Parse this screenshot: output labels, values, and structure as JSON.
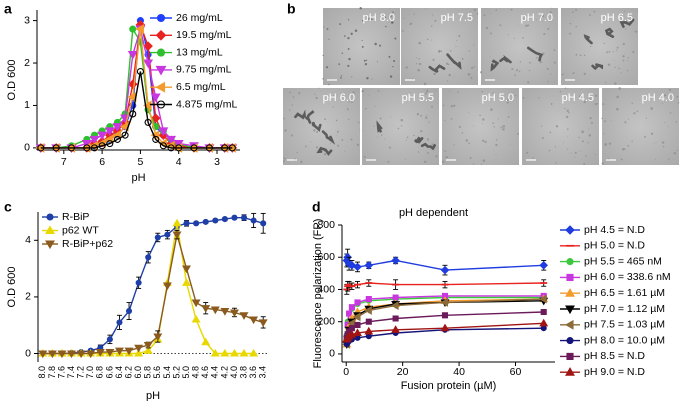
{
  "panel_labels": [
    "a",
    "b",
    "c",
    "d"
  ],
  "micrographs": {
    "labels": [
      "pH 8.0",
      "pH 7.5",
      "pH 7.0",
      "pH 6.5",
      "pH 6.0",
      "pH 5.5",
      "pH 5.0",
      "pH 4.5",
      "pH 4.0"
    ]
  },
  "chart_data": [
    {
      "type": "line",
      "xlabel": "pH",
      "ylabel": "O.D 600",
      "x": [
        7.6,
        7.2,
        6.8,
        6.4,
        6.2,
        6.0,
        5.8,
        5.6,
        5.4,
        5.2,
        5.0,
        4.8,
        4.6,
        4.4,
        4.2,
        4.0,
        3.6,
        3.2,
        2.8,
        2.6
      ],
      "xlim": [
        7.7,
        2.4
      ],
      "xticks": [
        7,
        6,
        5,
        4,
        3
      ],
      "ylim": [
        -0.05,
        3.25
      ],
      "yticks": [
        0,
        1,
        2,
        3
      ],
      "series": [
        {
          "name": "26 mg/mL",
          "color": "#1f3fff",
          "marker": "circle",
          "values": [
            0,
            0,
            0,
            0,
            0.05,
            0.1,
            0.2,
            0.3,
            0.5,
            1.0,
            3.0,
            2.2,
            0.5,
            0.3,
            0.1,
            0.05,
            0,
            0,
            0,
            0
          ]
        },
        {
          "name": "19.5 mg/mL",
          "color": "#e8231f",
          "marker": "diamond",
          "values": [
            0,
            0,
            0,
            0,
            0.1,
            0.15,
            0.3,
            0.4,
            0.6,
            1.5,
            2.9,
            2.4,
            0.7,
            0.3,
            0.1,
            0.05,
            0,
            0,
            0,
            0
          ]
        },
        {
          "name": "13 mg/mL",
          "color": "#2fc02f",
          "marker": "circle",
          "values": [
            0,
            0,
            0.05,
            0.2,
            0.3,
            0.4,
            0.5,
            0.6,
            0.8,
            2.8,
            2.5,
            0.9,
            0.5,
            0.4,
            0.2,
            0.1,
            0,
            0,
            0,
            0
          ]
        },
        {
          "name": "9.75 mg/mL",
          "color": "#c837e0",
          "marker": "tri-down",
          "values": [
            0,
            0,
            0,
            0.1,
            0.2,
            0.3,
            0.4,
            0.5,
            0.7,
            2.2,
            2.8,
            2.0,
            1.2,
            0.4,
            0.2,
            0.1,
            0.05,
            0,
            0,
            0
          ]
        },
        {
          "name": "6.5 mg/mL",
          "color": "#f39c2d",
          "marker": "tri-left",
          "values": [
            0,
            0,
            0,
            0,
            0.05,
            0.1,
            0.2,
            0.3,
            0.5,
            1.2,
            2.8,
            1.0,
            0.3,
            0.1,
            0.05,
            0,
            0,
            0,
            0,
            0
          ]
        },
        {
          "name": "4.875 mg/mL",
          "color": "#000000",
          "marker": "circle-open",
          "values": [
            0,
            0,
            0,
            0,
            0,
            0.05,
            0.1,
            0.2,
            0.3,
            0.8,
            1.8,
            0.6,
            0.2,
            0.05,
            0,
            0,
            0,
            0,
            0,
            0
          ]
        }
      ]
    },
    {
      "type": "line",
      "xlabel": "pH",
      "ylabel": "O.D 600",
      "categories": [
        "8.0",
        "7.8",
        "7.6",
        "7.4",
        "7.2",
        "7.0",
        "6.8",
        "6.6",
        "6.4",
        "6.2",
        "6.0",
        "5.8",
        "5.6",
        "5.4",
        "5.2",
        "5.0",
        "4.8",
        "4.6",
        "4.4",
        "4.2",
        "4.0",
        "3.8",
        "3.6",
        "3.4"
      ],
      "ylim": [
        -0.3,
        5.0
      ],
      "yticks": [
        0,
        2,
        4
      ],
      "series": [
        {
          "name": "R-BiP",
          "color": "#1f3fa8",
          "marker": "circle",
          "values": [
            0,
            0,
            0,
            0.02,
            0.05,
            0.1,
            0.2,
            0.5,
            1.1,
            1.5,
            2.5,
            3.4,
            4.1,
            4.2,
            4.5,
            4.6,
            4.6,
            4.65,
            4.7,
            4.75,
            4.8,
            4.8,
            4.7,
            4.6
          ],
          "errors": [
            null,
            null,
            null,
            null,
            null,
            0.05,
            0.1,
            0.15,
            0.25,
            0.3,
            0.2,
            0.2,
            0.15,
            0.15,
            0.1,
            0.1,
            0.05,
            0.05,
            0.05,
            0.05,
            0.05,
            0.1,
            0.25,
            0.35
          ]
        },
        {
          "name": "p62 WT",
          "color": "#e8d800",
          "marker": "tri-up",
          "values": [
            0,
            0,
            0,
            0,
            0,
            0,
            0,
            0,
            0,
            0,
            0,
            0.1,
            0.5,
            2.5,
            4.6,
            2.5,
            1.2,
            0.4,
            0,
            0,
            0,
            0,
            0,
            null
          ]
        },
        {
          "name": "R-BiP+p62",
          "color": "#8b5a1e",
          "marker": "tri-down",
          "values": [
            0,
            0,
            0,
            0,
            0,
            0,
            0.05,
            0.05,
            0.1,
            0.1,
            0.2,
            0.3,
            0.6,
            2.4,
            4.2,
            3.0,
            1.8,
            1.6,
            1.55,
            1.5,
            1.45,
            1.35,
            1.2,
            1.1
          ],
          "errors": [
            null,
            null,
            null,
            null,
            null,
            null,
            null,
            null,
            null,
            null,
            null,
            0.1,
            0.2,
            null,
            0.15,
            null,
            null,
            0.2,
            null,
            null,
            0.15,
            null,
            null,
            0.2
          ]
        }
      ]
    },
    {
      "type": "scatter",
      "title": "pH dependent",
      "xlabel": "Fusion protein (µM)",
      "ylabel": "Fluorescence polarization (FP)",
      "x": [
        0.2,
        0.5,
        1,
        2,
        4,
        8,
        17.5,
        35,
        70
      ],
      "xlim": [
        -1.5,
        74
      ],
      "xticks": [
        0,
        20,
        40,
        60
      ],
      "ylim": [
        -50,
        800
      ],
      "yticks": [
        0,
        200,
        400,
        600,
        800
      ],
      "series": [
        {
          "name": "pH 4.5 = N.D",
          "color": "#1f3de0",
          "marker": "diamond",
          "values": [
            580,
            600,
            560,
            550,
            540,
            550,
            580,
            520,
            550
          ],
          "errors": [
            40,
            50,
            40,
            30,
            30,
            20,
            20,
            30,
            30
          ]
        },
        {
          "name": "pH 5.0 = N.D",
          "color": "#e8231f",
          "marker": "dash",
          "values": [
            400,
            420,
            430,
            420,
            430,
            440,
            430,
            430,
            440
          ],
          "errors": [
            30,
            30,
            20,
            20,
            20,
            20,
            30,
            20,
            20
          ]
        },
        {
          "name": "pH 5.5 = 465 nM",
          "color": "#3cc83c",
          "marker": "circle",
          "values": [
            120,
            200,
            250,
            280,
            310,
            330,
            340,
            350,
            350
          ]
        },
        {
          "name": "pH 6.0 = 338.6 nM",
          "color": "#c837e0",
          "marker": "square",
          "values": [
            100,
            180,
            250,
            290,
            320,
            340,
            350,
            360,
            360
          ]
        },
        {
          "name": "pH 6.5 = 1.61 µM",
          "color": "#f39c2d",
          "marker": "tri-up",
          "values": [
            60,
            100,
            170,
            220,
            260,
            290,
            310,
            330,
            340
          ]
        },
        {
          "name": "pH 7.0 = 1.12 µM",
          "color": "#000000",
          "marker": "tri-down",
          "values": [
            60,
            90,
            150,
            200,
            240,
            280,
            310,
            320,
            330
          ]
        },
        {
          "name": "pH 7.5 = 1.03 µM",
          "color": "#8c6a3a",
          "marker": "tri-left",
          "values": [
            60,
            90,
            140,
            190,
            230,
            270,
            300,
            320,
            340
          ]
        },
        {
          "name": "pH 8.0 = 10.0 µM",
          "color": "#14147a",
          "marker": "circle",
          "values": [
            60,
            70,
            80,
            90,
            100,
            110,
            130,
            150,
            160
          ]
        },
        {
          "name": "pH 8.5 = N.D",
          "color": "#6b1a5a",
          "marker": "square",
          "values": [
            100,
            120,
            140,
            160,
            180,
            200,
            220,
            240,
            260
          ]
        },
        {
          "name": "pH 9.0 = N.D",
          "color": "#a01414",
          "marker": "tri-up",
          "values": [
            90,
            100,
            110,
            120,
            130,
            140,
            150,
            160,
            190
          ]
        }
      ]
    }
  ]
}
